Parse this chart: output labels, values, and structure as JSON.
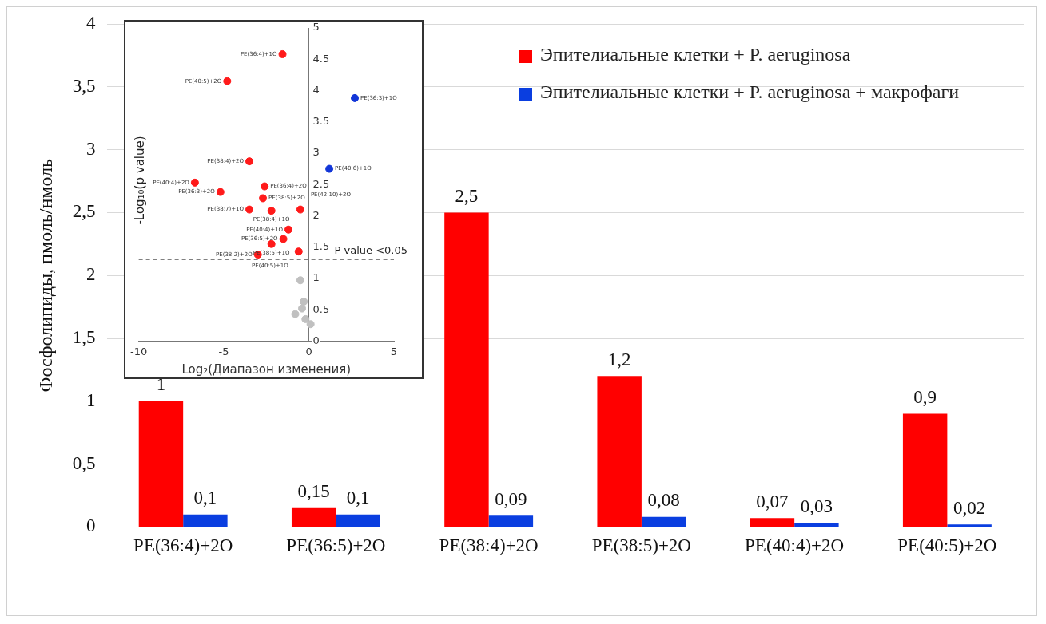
{
  "chart_data": [
    {
      "type": "bar",
      "ylabel": "Фосфолипиды, пмоль/нмоль",
      "categories": [
        "PE(36:4)+2O",
        "PE(36:5)+2O",
        "PE(38:4)+2O",
        "PE(38:5)+2O",
        "PE(40:4)+2O",
        "PE(40:5)+2O"
      ],
      "series": [
        {
          "name": "Эпителиальные клетки + P. aeruginosa",
          "color": "#ff0000",
          "values": [
            1,
            0.15,
            2.5,
            1.2,
            0.07,
            0.9
          ],
          "value_labels": [
            "1",
            "0,15",
            "2,5",
            "1,2",
            "0,07",
            "0,9"
          ]
        },
        {
          "name": "Эпителиальные клетки + P. aeruginosa + макрофаги",
          "color": "#0a3ee0",
          "values": [
            0.1,
            0.1,
            0.09,
            0.08,
            0.03,
            0.02
          ],
          "value_labels": [
            "0,1",
            "0,1",
            "0,09",
            "0,08",
            "0,03",
            "0,02"
          ]
        }
      ],
      "ylim": [
        0,
        4
      ],
      "yticks": [
        0,
        {
          "value": 0.5,
          "label": "0,5"
        },
        1,
        {
          "value": 1.5,
          "label": "1,5"
        },
        2,
        {
          "value": 2.5,
          "label": "2,5"
        },
        3,
        {
          "value": 3.5,
          "label": "3,5"
        },
        4
      ],
      "grid": "y",
      "legend": "top right"
    },
    {
      "type": "scatter",
      "xlabel": "Log₂(Диапазон изменения)",
      "ylabel": "-Log₁₀(p value)",
      "xlim": [
        -10,
        5
      ],
      "xticks": [
        -10,
        -5,
        0,
        5
      ],
      "ylim": [
        0,
        5
      ],
      "yticks": [
        0,
        0.5,
        1,
        1.5,
        2,
        2.5,
        3,
        3.5,
        4,
        4.5,
        5
      ],
      "grid": false,
      "marker": "circle",
      "series": [
        {
          "color": "#ff1a1a",
          "x": [
            -1.55,
            -4.8,
            -3.5,
            -6.7,
            -5.2,
            -2.6,
            -2.7,
            -3.5,
            -2.2,
            -0.5,
            -1.2,
            -1.5,
            -2.2,
            -3.0,
            -0.6
          ],
          "values": [
            4.58,
            4.15,
            2.87,
            2.53,
            2.38,
            2.47,
            2.28,
            2.1,
            2.08,
            2.1,
            1.78,
            1.63,
            1.55,
            1.38,
            1.43
          ]
        },
        {
          "color": "#1236d8",
          "x": [
            2.7,
            1.2
          ],
          "values": [
            3.88,
            2.75
          ]
        },
        {
          "color": "#c0c0c0",
          "x": [
            -0.5,
            -0.3,
            -0.4,
            -0.8,
            -0.2,
            0.1
          ],
          "values": [
            0.97,
            0.63,
            0.52,
            0.43,
            0.35,
            0.27
          ]
        }
      ],
      "ref_lines": [
        {
          "axis": "y",
          "value": 1.3,
          "label": "P value <0.05",
          "color": "#808080",
          "line_style": "dashed"
        }
      ],
      "annotations": [
        {
          "text": "PE(36:4)+1O",
          "x": -1.55,
          "y": 4.58
        },
        {
          "text": "PE(40:5)+2O",
          "x": -4.8,
          "y": 4.15
        },
        {
          "text": "PE(38:4)+2O",
          "x": -3.5,
          "y": 2.87
        },
        {
          "text": "PE(40:4)+2O",
          "x": -6.7,
          "y": 2.53
        },
        {
          "text": "PE(36:3)+2O",
          "x": -5.2,
          "y": 2.38
        },
        {
          "text": "PE(36:4)+2O",
          "x": -2.6,
          "y": 2.47
        },
        {
          "text": "PE(38:5)+2O",
          "x": -2.7,
          "y": 2.28
        },
        {
          "text": "PE(38:7)+1O",
          "x": -3.5,
          "y": 2.1
        },
        {
          "text": "PE(38:4)+1O",
          "x": -2.2,
          "y": 2.08
        },
        {
          "text": "PE(42:10)+2O",
          "x": -0.5,
          "y": 2.1
        },
        {
          "text": "PE(40:4)+1O",
          "x": -1.2,
          "y": 1.78
        },
        {
          "text": "PE(36:5)+2O",
          "x": -1.5,
          "y": 1.63
        },
        {
          "text": "PE(38:5)+1O",
          "x": -2.2,
          "y": 1.55
        },
        {
          "text": "PE(38:2)+2O",
          "x": -3.0,
          "y": 1.38
        },
        {
          "text": "PE(40:5)+1O",
          "x": -0.6,
          "y": 1.43
        },
        {
          "text": "PE(36:3)+1O",
          "x": 2.7,
          "y": 3.88
        },
        {
          "text": "PE(40:6)+1O",
          "x": 1.2,
          "y": 2.75
        }
      ]
    }
  ]
}
